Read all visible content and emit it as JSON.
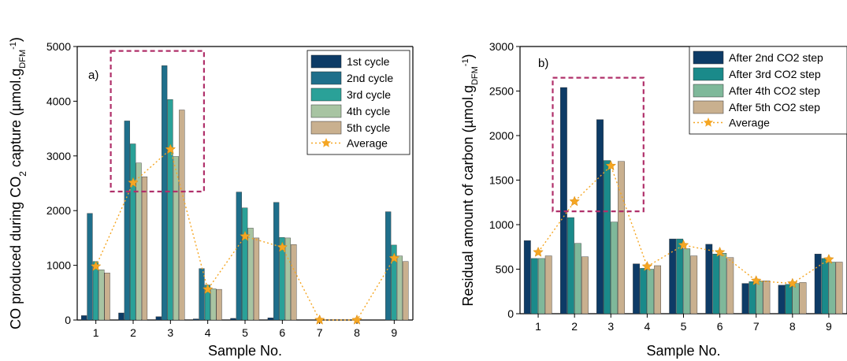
{
  "chart_data": [
    {
      "type": "bar",
      "panel_label": "a)",
      "xlabel": "Sample No.",
      "ylabel": "CO produced during CO",
      "ylabel_sub": "2",
      "ylabel_tail": " capture (µmol.g",
      "ylabel_sub2": "DFM",
      "ylabel_sup": "-1",
      "ylabel_end": ")",
      "ylim": [
        0,
        5000
      ],
      "yticks": [
        0,
        1000,
        2000,
        3000,
        4000,
        5000
      ],
      "categories": [
        "1",
        "2",
        "3",
        "4",
        "5",
        "6",
        "7",
        "8",
        "9"
      ],
      "legend_position": "top-right",
      "series": [
        {
          "name": "1st cycle",
          "color": "#0d3b66",
          "values": [
            80,
            130,
            60,
            20,
            30,
            40,
            0,
            0,
            0
          ]
        },
        {
          "name": "2nd cycle",
          "color": "#1f6f8b",
          "values": [
            1950,
            3640,
            4650,
            940,
            2340,
            2150,
            0,
            0,
            1980
          ]
        },
        {
          "name": "3rd cycle",
          "color": "#2aa198",
          "values": [
            1070,
            3220,
            4030,
            640,
            2050,
            1510,
            0,
            0,
            1370
          ]
        },
        {
          "name": "4th cycle",
          "color": "#a8c4a2",
          "values": [
            920,
            2870,
            2990,
            570,
            1680,
            1500,
            0,
            0,
            1170
          ]
        },
        {
          "name": "5th cycle",
          "color": "#c9b08f",
          "values": [
            860,
            2620,
            3840,
            560,
            1500,
            1380,
            0,
            0,
            1070
          ]
        }
      ],
      "average": {
        "name": "Average",
        "color": "#f5a623",
        "values": [
          980,
          2510,
          3120,
          560,
          1530,
          1330,
          0,
          0,
          1130
        ]
      },
      "highlight": {
        "from_category": "2",
        "to_category": "3",
        "y_range": [
          2350,
          4920
        ],
        "color": "#b0306a"
      }
    },
    {
      "type": "bar",
      "panel_label": "b)",
      "xlabel": "Sample No.",
      "ylabel": "Residual amount of carbon (µmol.g",
      "ylabel_sub": "DFM",
      "ylabel_sup": "-1",
      "ylabel_end": ")",
      "ylim": [
        0,
        3000
      ],
      "yticks": [
        0,
        500,
        1000,
        1500,
        2000,
        2500,
        3000
      ],
      "categories": [
        "1",
        "2",
        "3",
        "4",
        "5",
        "6",
        "7",
        "8",
        "9"
      ],
      "legend_position": "top-right",
      "series": [
        {
          "name": "After 2nd CO2 step",
          "color": "#0d3b66",
          "values": [
            820,
            2540,
            2180,
            560,
            840,
            780,
            340,
            320,
            670
          ]
        },
        {
          "name": "After 3rd CO2 step",
          "color": "#1a8a8a",
          "values": [
            620,
            1080,
            1720,
            510,
            840,
            670,
            360,
            330,
            620
          ]
        },
        {
          "name": "After 4th CO2 step",
          "color": "#7fb89a",
          "values": [
            620,
            790,
            1030,
            500,
            730,
            680,
            370,
            340,
            580
          ]
        },
        {
          "name": "After 5th CO2 step",
          "color": "#c9b08f",
          "values": [
            650,
            640,
            1710,
            540,
            650,
            630,
            370,
            350,
            580
          ]
        }
      ],
      "average": {
        "name": "Average",
        "color": "#f5a623",
        "values": [
          690,
          1260,
          1660,
          530,
          770,
          690,
          370,
          340,
          610
        ]
      },
      "highlight": {
        "from_category": "2",
        "to_category": "3",
        "y_range": [
          1150,
          2650
        ],
        "color": "#b0306a"
      }
    }
  ]
}
